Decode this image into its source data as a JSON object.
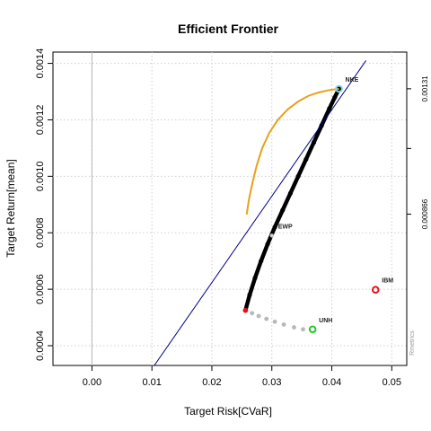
{
  "chart_data": {
    "type": "scatter",
    "title": "Efficient Frontier",
    "xlabel": "Target Risk[CVaR]",
    "ylabel": "Target Return[mean]",
    "xlim": [
      -0.0065,
      0.0525
    ],
    "ylim": [
      0.00033,
      0.00144
    ],
    "xticks": [
      0.0,
      0.01,
      0.02,
      0.03,
      0.04,
      0.05
    ],
    "xtick_labels": [
      "0.00",
      "0.01",
      "0.02",
      "0.03",
      "0.04",
      "0.05"
    ],
    "yticks": [
      0.0004,
      0.0006,
      0.0008,
      0.001,
      0.0012,
      0.0014
    ],
    "ytick_labels": [
      "0.0004",
      "0.0006",
      "0.0008",
      "0.0010",
      "0.0012",
      "0.0014"
    ],
    "grid": true,
    "right_axis": {
      "tick_values": [
        0.00131,
        0.0010985,
        0.000866
      ],
      "tick_labels": [
        "0.00131",
        "",
        "0.000866"
      ]
    },
    "series": [
      {
        "role": "efficient-frontier",
        "color": "#000000",
        "x": [
          0.0256,
          0.0263,
          0.0272,
          0.0282,
          0.0293,
          0.0305,
          0.0318,
          0.0331,
          0.0344,
          0.0357,
          0.037,
          0.0383,
          0.0396,
          0.0405,
          0.0412
        ],
        "y": [
          0.000525,
          0.00058,
          0.00064,
          0.0007,
          0.00076,
          0.00082,
          0.00088,
          0.00094,
          0.001,
          0.00106,
          0.00112,
          0.00118,
          0.00124,
          0.00128,
          0.00131
        ]
      },
      {
        "role": "minimum-variance-locus",
        "color": "#b8b8b8",
        "x": [
          0.0256,
          0.0267,
          0.0278,
          0.0291,
          0.0305,
          0.032,
          0.0337,
          0.0352
        ],
        "y": [
          0.000525,
          0.000515,
          0.000505,
          0.000495,
          0.000485,
          0.000475,
          0.000465,
          0.000458
        ]
      },
      {
        "role": "sharpe-ratio",
        "color": "#e8a11a",
        "x": [
          0.0258,
          0.0262,
          0.0268,
          0.0275,
          0.0284,
          0.0296,
          0.031,
          0.0327,
          0.0344,
          0.0361,
          0.0378,
          0.0395,
          0.0412
        ],
        "y": [
          0.000865,
          0.00092,
          0.00098,
          0.00104,
          0.0011,
          0.001155,
          0.0012,
          0.001238,
          0.001265,
          0.001285,
          0.001297,
          0.001305,
          0.00131
        ]
      },
      {
        "role": "tangency-line",
        "color": "#00008b",
        "x": [
          0.0104,
          0.0457
        ],
        "y": [
          0.00033,
          0.00141
        ]
      }
    ],
    "assets": [
      {
        "label": "IBM",
        "x": 0.0473,
        "y": 0.000598,
        "color": "#e8101a"
      },
      {
        "label": "UNH",
        "x": 0.0368,
        "y": 0.000458,
        "color": "#22c922"
      },
      {
        "label": "NKE",
        "x": 0.0412,
        "y": 0.00131,
        "color": "#7fd6e8"
      },
      {
        "label": "EWP",
        "x": 0.03,
        "y": 0.00079,
        "color": "#cccccc"
      }
    ],
    "min_risk_point": {
      "x": 0.0256,
      "y": 0.000525,
      "color": "#e8101a"
    },
    "watermark": "Rmetrics"
  }
}
